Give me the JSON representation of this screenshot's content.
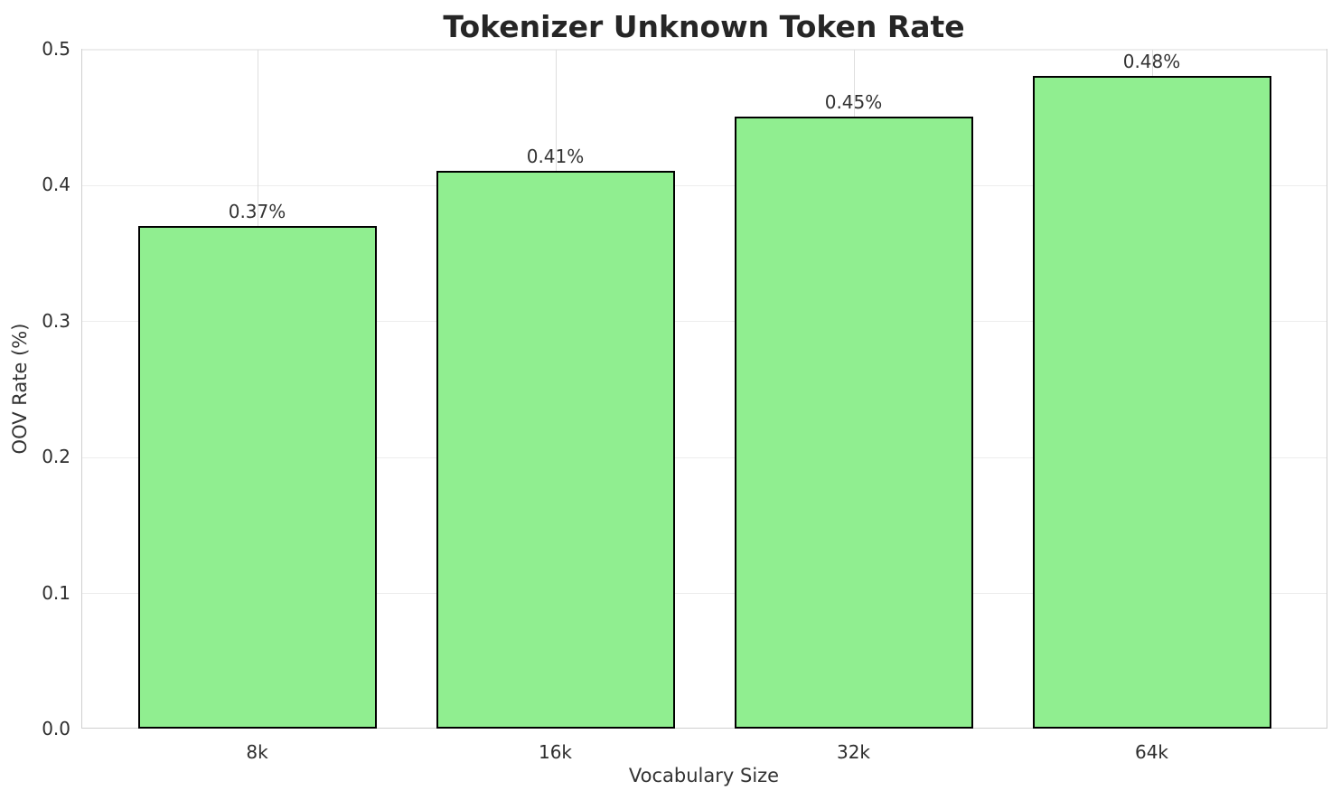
{
  "chart_data": {
    "type": "bar",
    "title": "Tokenizer Unknown Token Rate",
    "xlabel": "Vocabulary Size",
    "ylabel": "OOV Rate (%)",
    "categories": [
      "8k",
      "16k",
      "32k",
      "64k"
    ],
    "values": [
      0.37,
      0.41,
      0.45,
      0.48
    ],
    "bar_labels": [
      "0.37%",
      "0.41%",
      "0.45%",
      "0.48%"
    ],
    "ylim": [
      0.0,
      0.5
    ],
    "yticks": [
      0.0,
      0.1,
      0.2,
      0.3,
      0.4,
      0.5
    ],
    "ytick_labels": [
      "0.0",
      "0.1",
      "0.2",
      "0.3",
      "0.4",
      "0.5"
    ],
    "grid": "both",
    "legend": "none",
    "bar_color": "#90EE90",
    "bar_edge_color": "#000000",
    "background_color": "#ffffff",
    "spine_color": "#cfcfcf",
    "title_color": "#262626",
    "text_color": "#333333"
  }
}
